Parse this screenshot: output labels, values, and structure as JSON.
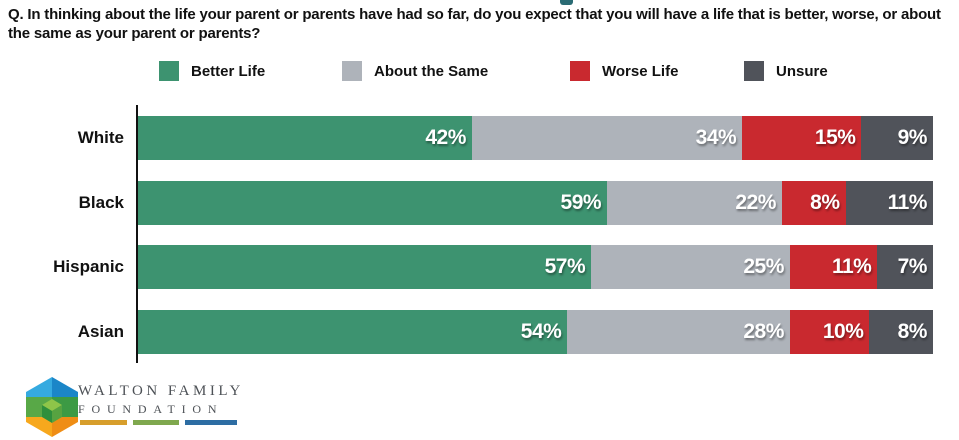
{
  "title": "Q. In thinking about the life your parent or parents have had so far, do you expect that you will have a life that is better, worse, or about the same as your parent or parents?",
  "chart_data": {
    "type": "bar",
    "stacked": true,
    "orientation": "horizontal",
    "categories": [
      "White",
      "Black",
      "Hispanic",
      "Asian"
    ],
    "series": [
      {
        "name": "Better Life",
        "color": "#3d9370",
        "values": [
          42,
          59,
          57,
          54
        ]
      },
      {
        "name": "About the Same",
        "color": "#aeb3ba",
        "values": [
          34,
          22,
          25,
          28
        ]
      },
      {
        "name": "Worse Life",
        "color": "#c9292f",
        "values": [
          15,
          8,
          11,
          10
        ]
      },
      {
        "name": "Unsure",
        "color": "#50535a",
        "values": [
          9,
          11,
          7,
          8
        ]
      }
    ],
    "value_suffix": "%",
    "xlim": [
      0,
      100
    ],
    "legend_position": "top",
    "axis_color": "#111111"
  },
  "logo": {
    "line1": "WALTON FAMILY",
    "line2": "FOUNDATION",
    "bar_colors": [
      "#d79e2c",
      "#7fa84e",
      "#2d6da3"
    ],
    "hex_colors": {
      "blue_light": "#35aae0",
      "blue_dark": "#1b86c8",
      "green_light": "#58a847",
      "green_dark": "#3c9a44",
      "orange_light": "#f7a81d",
      "orange_dark": "#ef8d15",
      "cube_top": "#8ec549",
      "cube_left": "#2e8f3c",
      "cube_right": "#57a341"
    }
  }
}
